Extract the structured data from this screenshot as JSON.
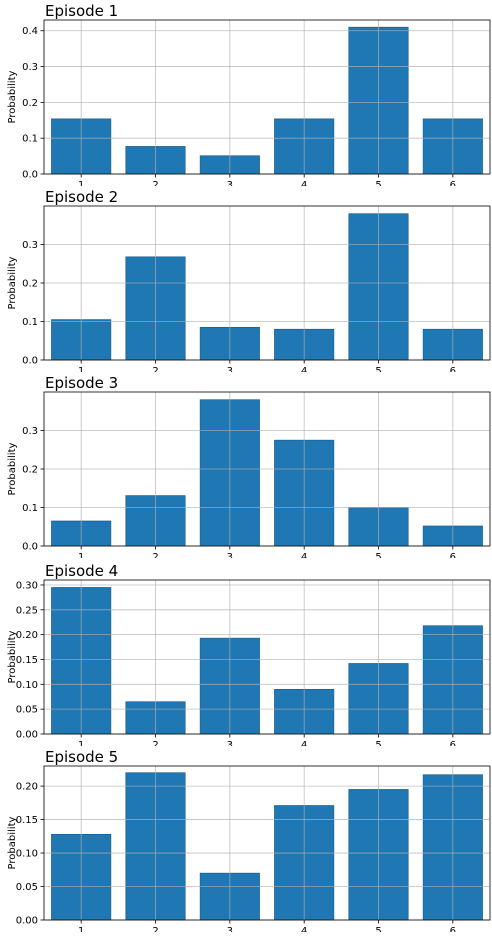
{
  "colors": {
    "bar": "#1f77b4",
    "grid": "#b0b0b0",
    "axis": "#000000"
  },
  "chart_data": [
    {
      "type": "bar",
      "title": "Episode 1",
      "ylabel": "Probability",
      "categories": [
        "1",
        "2",
        "3",
        "4",
        "5",
        "6"
      ],
      "values": [
        0.154,
        0.077,
        0.051,
        0.154,
        0.41,
        0.154
      ],
      "ylim": [
        0,
        0.43
      ],
      "yticks": [
        0.0,
        0.1,
        0.2,
        0.3,
        0.4
      ],
      "ytick_labels": [
        "0.0",
        "0.1",
        "0.2",
        "0.3",
        "0.4"
      ],
      "grid": true
    },
    {
      "type": "bar",
      "title": "Episode 2",
      "ylabel": "Probability",
      "categories": [
        "1",
        "2",
        "3",
        "4",
        "5",
        "6"
      ],
      "values": [
        0.105,
        0.268,
        0.085,
        0.08,
        0.38,
        0.08
      ],
      "ylim": [
        0,
        0.4
      ],
      "yticks": [
        0.0,
        0.1,
        0.2,
        0.3
      ],
      "ytick_labels": [
        "0.0",
        "0.1",
        "0.2",
        "0.3"
      ],
      "grid": true
    },
    {
      "type": "bar",
      "title": "Episode 3",
      "ylabel": "Probability",
      "categories": [
        "1",
        "2",
        "3",
        "4",
        "5",
        "6"
      ],
      "values": [
        0.065,
        0.131,
        0.38,
        0.275,
        0.1,
        0.052
      ],
      "ylim": [
        0,
        0.4
      ],
      "yticks": [
        0.0,
        0.1,
        0.2,
        0.3
      ],
      "ytick_labels": [
        "0.0",
        "0.1",
        "0.2",
        "0.3"
      ],
      "grid": true
    },
    {
      "type": "bar",
      "title": "Episode 4",
      "ylabel": "Probability",
      "categories": [
        "1",
        "2",
        "3",
        "4",
        "5",
        "6"
      ],
      "values": [
        0.295,
        0.065,
        0.193,
        0.09,
        0.142,
        0.218
      ],
      "ylim": [
        0,
        0.31
      ],
      "yticks": [
        0.0,
        0.05,
        0.1,
        0.15,
        0.2,
        0.25,
        0.3
      ],
      "ytick_labels": [
        "0.00",
        "0.05",
        "0.10",
        "0.15",
        "0.20",
        "0.25",
        "0.30"
      ],
      "grid": true
    },
    {
      "type": "bar",
      "title": "Episode 5",
      "ylabel": "Probability",
      "categories": [
        "1",
        "2",
        "3",
        "4",
        "5",
        "6"
      ],
      "values": [
        0.128,
        0.22,
        0.07,
        0.171,
        0.195,
        0.217
      ],
      "ylim": [
        0,
        0.23
      ],
      "yticks": [
        0.0,
        0.05,
        0.1,
        0.15,
        0.2
      ],
      "ytick_labels": [
        "0.00",
        "0.05",
        "0.10",
        "0.15",
        "0.20"
      ],
      "grid": true
    }
  ]
}
